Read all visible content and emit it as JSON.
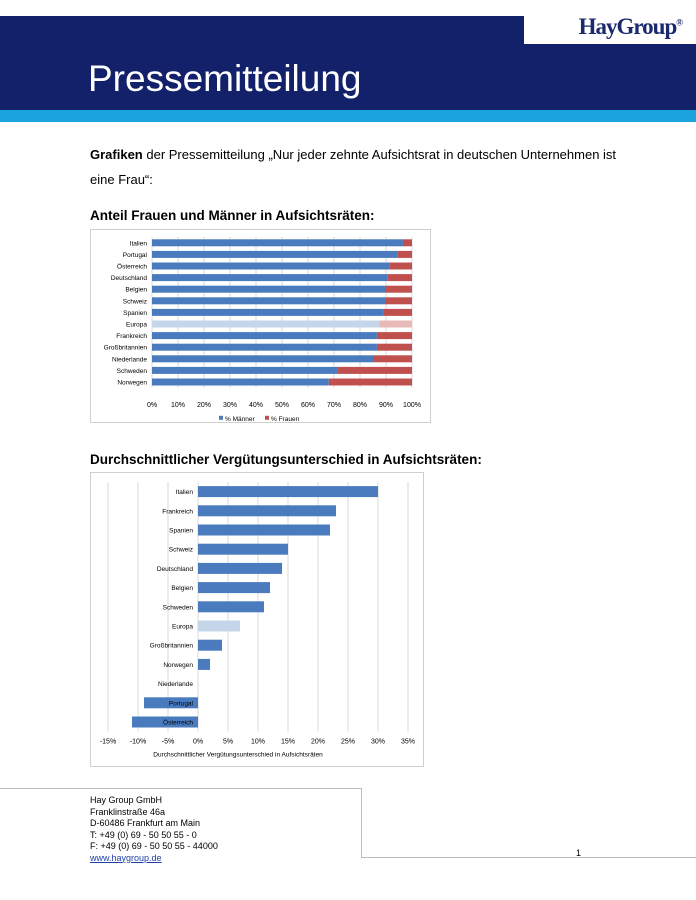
{
  "header": {
    "title": "Pressemitteilung",
    "logo": "HayGroup",
    "logo_mark": "®",
    "colors": {
      "band": "#13216b",
      "stripe": "#1aa3dd"
    }
  },
  "intro": {
    "bold": "Grafiken",
    "text": " der Pressemitteilung „Nur jeder zehnte Aufsichtsrat in deutschen Unternehmen ist eine Frau“:"
  },
  "section1": {
    "title": "Anteil Frauen und Männer in Aufsichtsräten:"
  },
  "section2": {
    "title": "Durchschnittlicher Vergütungsunterschied in Aufsichtsräten:"
  },
  "chart_data": [
    {
      "type": "bar",
      "orientation": "horizontal-stacked-100",
      "categories": [
        "Italien",
        "Portugal",
        "Österreich",
        "Deutschland",
        "Belgien",
        "Schweiz",
        "Spanien",
        "Europa",
        "Frankreich",
        "Großbritannien",
        "Niederlande",
        "Schweden",
        "Norwegen"
      ],
      "series": [
        {
          "name": "% Männer",
          "color": "#4a7bbf",
          "highlight_color": "#c5d5ea",
          "values": [
            96.5,
            94.5,
            91.5,
            90.5,
            90,
            90,
            89,
            87.5,
            86.5,
            86.5,
            85,
            71.5,
            68
          ]
        },
        {
          "name": "% Frauen",
          "color": "#c0504d",
          "highlight_color": "#e8b9b8",
          "values": [
            3.5,
            5.5,
            8.5,
            9.5,
            10,
            10,
            11,
            12.5,
            13.5,
            13.5,
            15,
            28.5,
            32
          ]
        }
      ],
      "highlight_category": "Europa",
      "xticks": [
        "0%",
        "10%",
        "20%",
        "30%",
        "40%",
        "50%",
        "60%",
        "70%",
        "80%",
        "90%",
        "100%"
      ],
      "xlim": [
        0,
        100
      ],
      "legend": "bottom",
      "grid": true
    },
    {
      "type": "bar",
      "orientation": "horizontal",
      "categories": [
        "Italien",
        "Frankreich",
        "Spanien",
        "Schweiz",
        "Deutschland",
        "Belgien",
        "Schweden",
        "Europa",
        "Großbritannien",
        "Norwegen",
        "Niederlande",
        "Portugal",
        "Österreich"
      ],
      "values": [
        30,
        23,
        22,
        15,
        14,
        12,
        11,
        7,
        4,
        2,
        0,
        -9,
        -11
      ],
      "highlight_category": "Europa",
      "bar_color": "#4a7bbf",
      "highlight_color": "#c5d5ea",
      "xticks": [
        "-15%",
        "-10%",
        "-5%",
        "0%",
        "5%",
        "10%",
        "15%",
        "20%",
        "25%",
        "30%",
        "35%"
      ],
      "xlim": [
        -15,
        35
      ],
      "xlabel": "Durchschnittlicher Vergütungsunterschied in Aufsichtsräten",
      "grid": true
    }
  ],
  "footer": {
    "lines": [
      "Hay Group GmbH",
      "Franklinstraße 46a",
      "D-60486 Frankfurt am Main",
      "T: +49 (0) 69 - 50 50 55 - 0",
      "F: +49 (0) 69 - 50 50 55 - 44000"
    ],
    "link": "www.haygroup.de",
    "page": "1"
  }
}
